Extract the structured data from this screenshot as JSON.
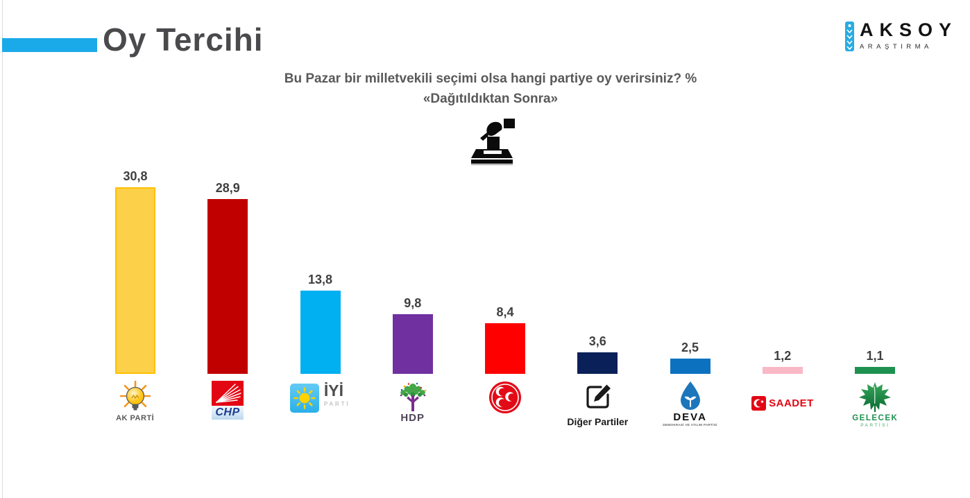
{
  "page": {
    "title": "Oy Tercihi"
  },
  "brand": {
    "name": "AKSOY",
    "tagline": "ARAŞTIRMA"
  },
  "question": {
    "line1": "Bu Pazar bir milletvekili seçimi olsa hangi partiye oy verirsiniz? %",
    "line2": "«Dağıtıldıktan Sonra»"
  },
  "icons": {
    "ballot_box": "ballot-box-icon",
    "brand_mark": "aksoy-logo-icon",
    "akparti": "lightbulb-icon",
    "chp": "six-arrows-icon",
    "iyi": "sun-icon",
    "hdp": "tree-icon",
    "mhp": "three-crescents-icon",
    "diger": "pencil-square-icon",
    "deva": "water-drop-icon",
    "saadet": "crescent-star-icon",
    "gelecek": "plane-leaf-icon"
  },
  "chart_data": {
    "type": "bar",
    "title": "Oy Tercihi",
    "subtitle": "Bu Pazar bir milletvekili seçimi olsa hangi partiye oy verirsiniz? % «Dağıtıldıktan Sonra»",
    "categories": [
      "AK PARTİ",
      "CHP",
      "İYİ PARTİ",
      "HDP",
      "MHP",
      "Diğer Partiler",
      "DEVA",
      "SAADET",
      "GELECEK PARTİSİ"
    ],
    "keys": [
      "akparti",
      "chp",
      "iyi",
      "hdp",
      "mhp",
      "diger",
      "deva",
      "saadet",
      "gelecek"
    ],
    "values": [
      30.8,
      28.9,
      13.8,
      9.8,
      8.4,
      3.6,
      2.5,
      1.2,
      1.1
    ],
    "value_labels": [
      "30,8",
      "28,9",
      "13,8",
      "9,8",
      "8,4",
      "3,6",
      "2,5",
      "1,2",
      "1,1"
    ],
    "colors": [
      "#FDD04A",
      "#C00000",
      "#00B0F0",
      "#7030A0",
      "#FF0000",
      "#0A2058",
      "#0C72C0",
      "#F9B8C6",
      "#1E9150"
    ],
    "bar_border": [
      "#FFC000",
      null,
      null,
      null,
      null,
      null,
      null,
      null,
      null
    ],
    "xlabel": "",
    "ylabel": "",
    "ylim": [
      0,
      33
    ],
    "grid": false,
    "legend": "none",
    "value_label_color": "#404040",
    "accent_color": "#1BAAE9"
  },
  "parties": {
    "akparti": {
      "label": "AK PARTİ"
    },
    "chp": {
      "label": "CHP"
    },
    "iyi": {
      "label": "İYİ",
      "sublabel": "PARTİ"
    },
    "hdp": {
      "label": "HDP"
    },
    "diger": {
      "label": "Diğer Partiler"
    },
    "deva": {
      "label": "DEVA",
      "sublabel": "DEMOKRASİ VE ATILIM PARTİSİ"
    },
    "saadet": {
      "label": "SAADET"
    },
    "gelecek": {
      "label": "GELECEK",
      "sublabel": "PARTİSİ"
    }
  }
}
